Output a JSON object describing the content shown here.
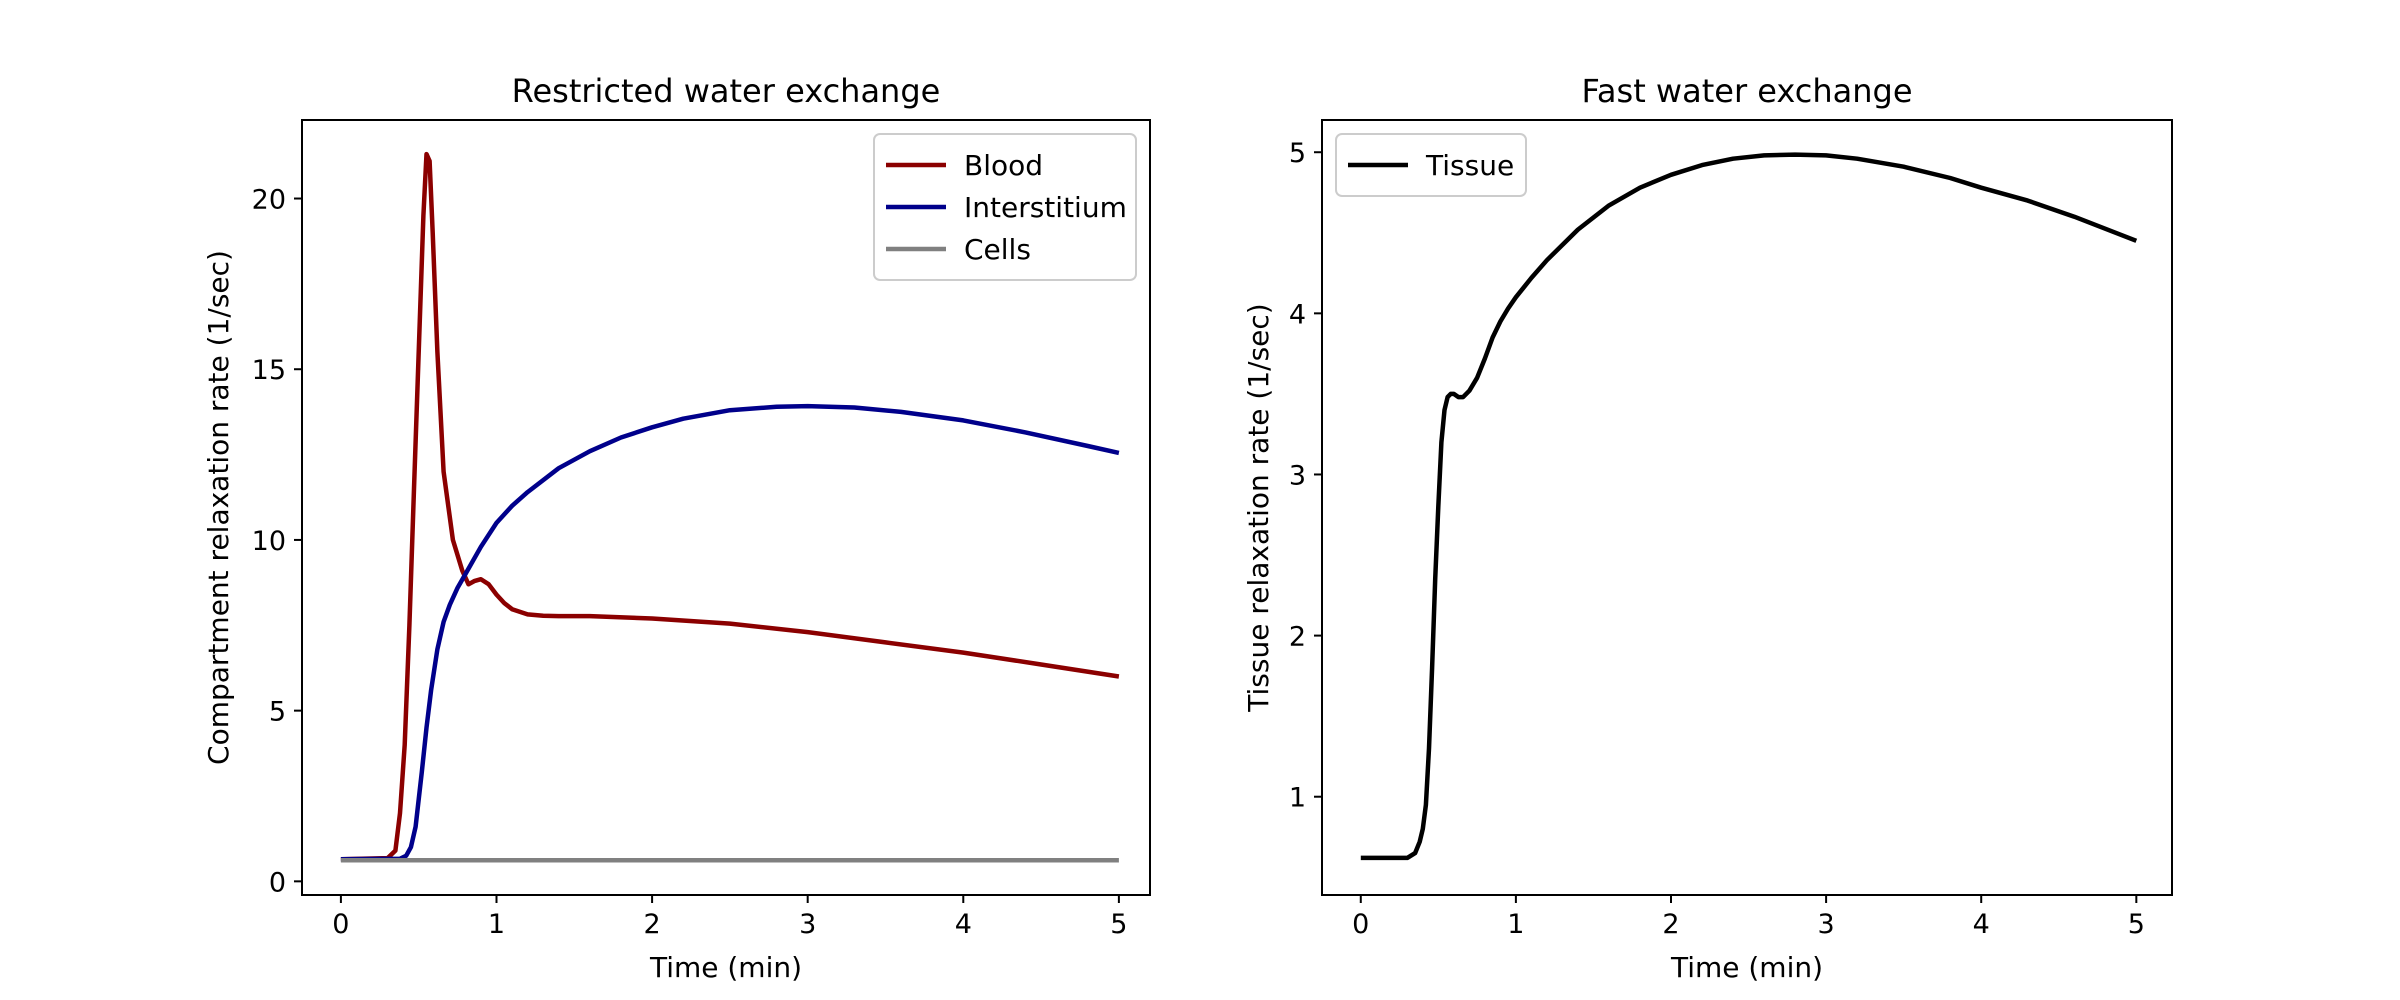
{
  "chart_data": [
    {
      "type": "line",
      "title": "Restricted water exchange",
      "xlabel": "Time (min)",
      "ylabel": "Compartment relaxation rate (1/sec)",
      "xlim": [
        -0.25,
        5.2
      ],
      "ylim": [
        -0.4,
        22.3
      ],
      "xticks": [
        0,
        1,
        2,
        3,
        4,
        5
      ],
      "yticks": [
        0,
        5,
        10,
        15,
        20
      ],
      "grid": false,
      "legend": "top-right",
      "series": [
        {
          "name": "Blood",
          "color": "#8b0000",
          "x": [
            0,
            0.3,
            0.35,
            0.38,
            0.41,
            0.44,
            0.47,
            0.5,
            0.53,
            0.55,
            0.57,
            0.59,
            0.62,
            0.66,
            0.72,
            0.78,
            0.82,
            0.86,
            0.9,
            0.95,
            1.0,
            1.05,
            1.1,
            1.2,
            1.3,
            1.4,
            1.6,
            2.0,
            2.5,
            3.0,
            3.5,
            4.0,
            4.5,
            5.0
          ],
          "y": [
            0.65,
            0.68,
            0.9,
            2.0,
            4.0,
            7.5,
            11.5,
            15.5,
            19.5,
            21.3,
            21.1,
            19.0,
            15.5,
            12.0,
            10.0,
            9.1,
            8.7,
            8.8,
            8.85,
            8.7,
            8.4,
            8.15,
            7.97,
            7.82,
            7.78,
            7.77,
            7.77,
            7.7,
            7.55,
            7.3,
            7.0,
            6.7,
            6.35,
            6.0
          ]
        },
        {
          "name": "Interstitium",
          "color": "#00008b",
          "x": [
            0,
            0.38,
            0.42,
            0.45,
            0.48,
            0.5,
            0.52,
            0.55,
            0.58,
            0.62,
            0.66,
            0.7,
            0.75,
            0.8,
            0.9,
            1.0,
            1.1,
            1.2,
            1.4,
            1.6,
            1.8,
            2.0,
            2.2,
            2.5,
            2.8,
            3.0,
            3.3,
            3.6,
            4.0,
            4.4,
            4.8,
            5.0
          ],
          "y": [
            0.65,
            0.66,
            0.75,
            1.0,
            1.6,
            2.4,
            3.2,
            4.5,
            5.6,
            6.8,
            7.6,
            8.1,
            8.6,
            9.0,
            9.8,
            10.5,
            11.0,
            11.4,
            12.1,
            12.6,
            13.0,
            13.3,
            13.55,
            13.8,
            13.9,
            13.92,
            13.88,
            13.75,
            13.5,
            13.15,
            12.75,
            12.55
          ]
        },
        {
          "name": "Cells",
          "color": "#808080",
          "x": [
            0,
            1,
            2,
            3,
            4,
            5
          ],
          "y": [
            0.62,
            0.62,
            0.62,
            0.62,
            0.62,
            0.62
          ]
        }
      ]
    },
    {
      "type": "line",
      "title": "Fast water exchange",
      "xlabel": "Time (min)",
      "ylabel": "Tissue relaxation rate (1/sec)",
      "xlim": [
        -0.25,
        5.23
      ],
      "ylim": [
        0.39,
        5.2
      ],
      "xticks": [
        0,
        1,
        2,
        3,
        4,
        5
      ],
      "yticks": [
        1,
        2,
        3,
        4,
        5
      ],
      "grid": false,
      "legend": "top-left",
      "series": [
        {
          "name": "Tissue",
          "color": "#000000",
          "x": [
            0,
            0.3,
            0.35,
            0.38,
            0.4,
            0.42,
            0.44,
            0.46,
            0.48,
            0.5,
            0.52,
            0.54,
            0.56,
            0.58,
            0.6,
            0.63,
            0.66,
            0.7,
            0.75,
            0.8,
            0.85,
            0.9,
            0.95,
            1.0,
            1.1,
            1.2,
            1.4,
            1.6,
            1.8,
            2.0,
            2.2,
            2.4,
            2.6,
            2.8,
            3.0,
            3.2,
            3.5,
            3.8,
            4.0,
            4.3,
            4.6,
            5.0
          ],
          "y": [
            0.62,
            0.62,
            0.65,
            0.72,
            0.8,
            0.95,
            1.3,
            1.8,
            2.35,
            2.8,
            3.2,
            3.4,
            3.48,
            3.5,
            3.5,
            3.48,
            3.48,
            3.52,
            3.6,
            3.72,
            3.85,
            3.95,
            4.03,
            4.1,
            4.22,
            4.33,
            4.52,
            4.67,
            4.78,
            4.86,
            4.92,
            4.96,
            4.98,
            4.985,
            4.98,
            4.96,
            4.91,
            4.84,
            4.78,
            4.7,
            4.6,
            4.45
          ]
        }
      ]
    }
  ]
}
